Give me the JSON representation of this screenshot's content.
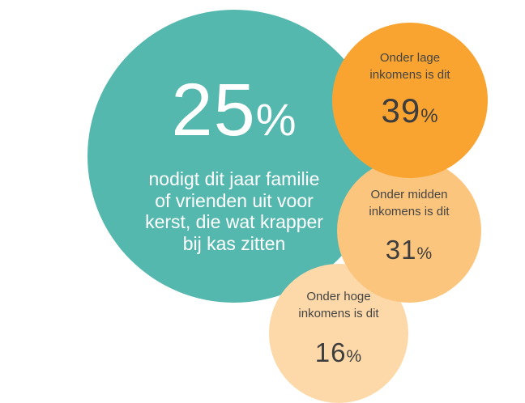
{
  "chart_data": {
    "type": "bubble",
    "title": "",
    "headline": {
      "value": 25,
      "unit": "%",
      "description_lines": [
        "nodigt dit jaar familie",
        "of vrienden uit voor",
        "kerst, die wat krapper",
        "bij kas zitten"
      ]
    },
    "categories": [
      "Onder lage inkomens is dit",
      "Onder midden inkomens is dit",
      "Onder hoge inkomens is dit"
    ],
    "series": [
      {
        "values": [
          39,
          31,
          16
        ],
        "unit": "%",
        "labels": [
          [
            "Onder lage",
            "inkomens is dit"
          ],
          [
            "Onder midden",
            "inkomens is dit"
          ],
          [
            "Onder hoge",
            "inkomens is dit"
          ]
        ]
      }
    ],
    "colors": {
      "headline": "#55b8ae",
      "values": [
        "#f9a430",
        "#fcc57e",
        "#fdd9a9"
      ]
    }
  }
}
